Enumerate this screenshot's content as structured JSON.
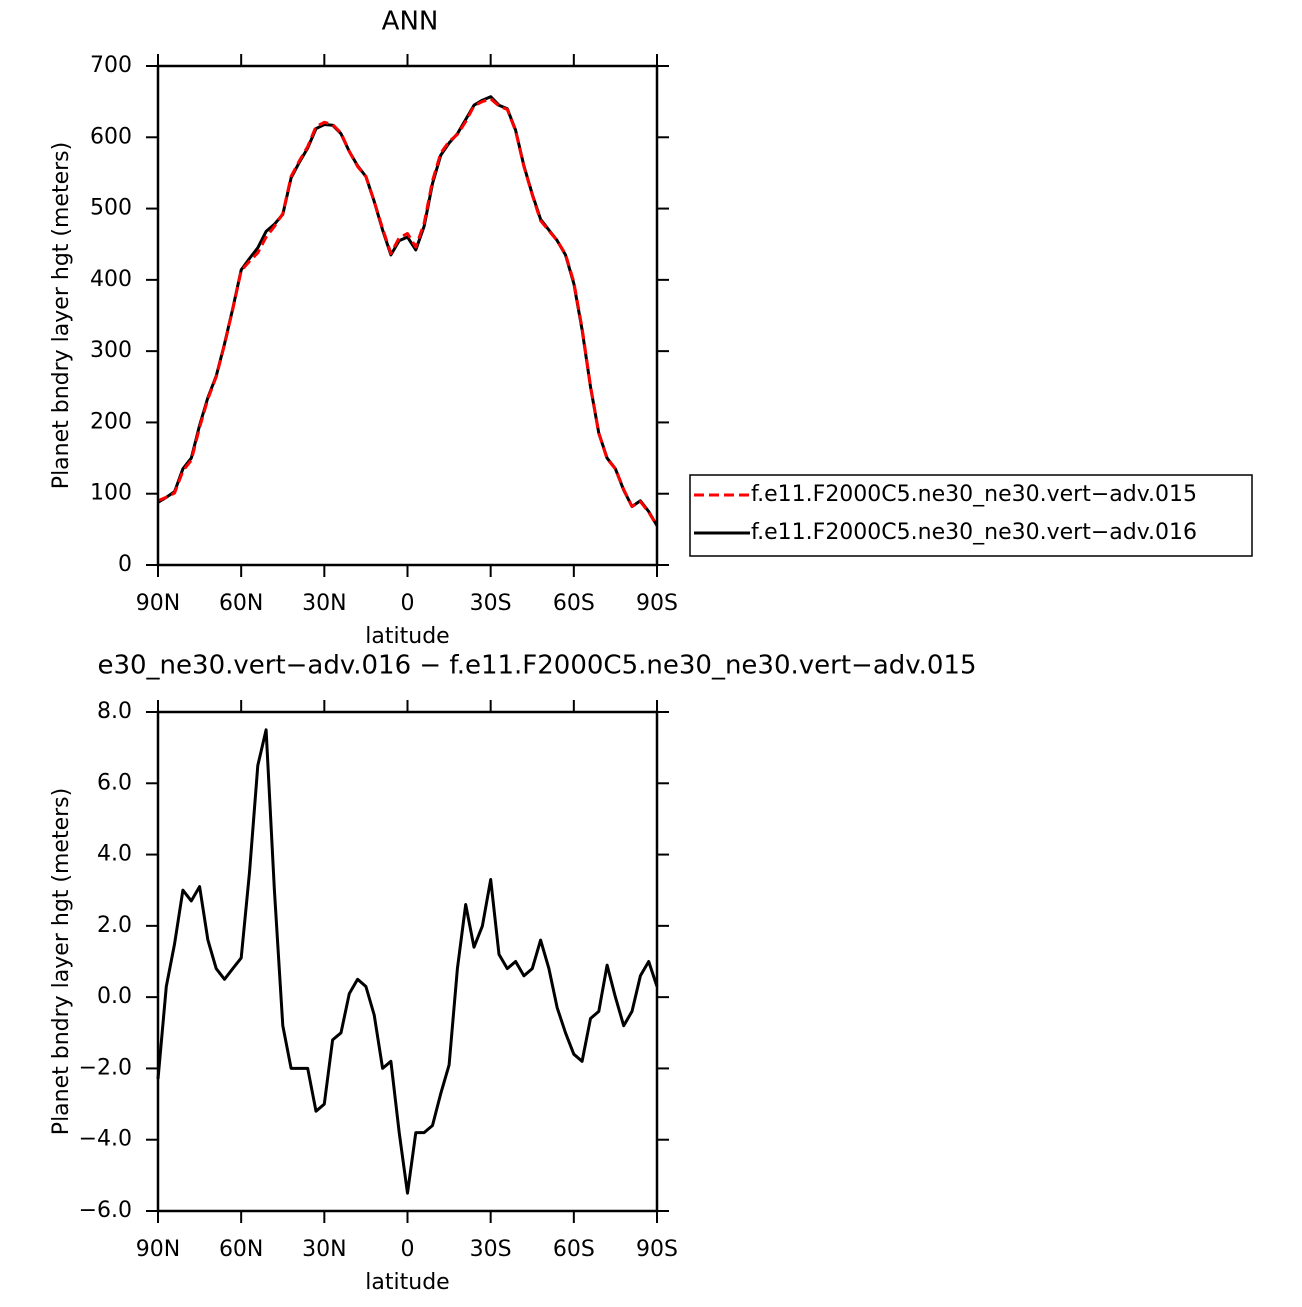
{
  "chart_data": [
    {
      "type": "line",
      "title": "ANN",
      "xlabel": "latitude",
      "ylabel": "Planet bndry layer hgt (meters)",
      "x": [
        90,
        87,
        84,
        81,
        78,
        75,
        72,
        69,
        66,
        63,
        60,
        57,
        54,
        51,
        48,
        45,
        42,
        39,
        36,
        33,
        30,
        27,
        24,
        21,
        18,
        15,
        12,
        9,
        6,
        3,
        0,
        -3,
        -6,
        -9,
        -12,
        -15,
        -18,
        -21,
        -24,
        -27,
        -30,
        -33,
        -36,
        -39,
        -42,
        -45,
        -48,
        -51,
        -54,
        -57,
        -60,
        -63,
        -66,
        -69,
        -72,
        -75,
        -78,
        -81,
        -84,
        -87,
        -90
      ],
      "xlim": [
        90,
        -90
      ],
      "xticks": [
        {
          "value": 90,
          "label": "90N"
        },
        {
          "value": 60,
          "label": "60N"
        },
        {
          "value": 30,
          "label": "30N"
        },
        0,
        {
          "value": -30,
          "label": "30S"
        },
        {
          "value": -60,
          "label": "60S"
        },
        {
          "value": -90,
          "label": "90S"
        }
      ],
      "ylim": [
        0,
        700
      ],
      "yticks": [
        0,
        100,
        200,
        300,
        400,
        500,
        600,
        700
      ],
      "legend": "right",
      "series": [
        {
          "name": "f.e11.F2000C5.ne30_ne30.vert−adv.015",
          "color": "#ff0000",
          "dashed": true,
          "values": [
            90,
            95,
            101,
            132,
            147,
            193,
            233,
            264,
            309,
            359,
            413,
            426,
            438,
            460,
            475,
            493,
            545,
            567,
            587,
            615,
            621,
            618,
            606,
            580,
            559,
            545,
            510,
            472,
            437,
            459,
            465,
            446,
            479,
            539,
            578,
            594,
            604,
            622,
            644,
            650,
            654,
            644,
            639,
            609,
            559,
            519,
            483,
            469,
            455,
            436,
            397,
            332,
            251,
            185,
            149,
            135,
            106,
            82,
            89,
            74,
            55
          ]
        },
        {
          "name": "f.e11.F2000C5.ne30_ne30.vert−adv.016",
          "color": "#000000",
          "dashed": false,
          "values": [
            88,
            95,
            103,
            135,
            150,
            196,
            235,
            265,
            310,
            360,
            414,
            430,
            445,
            468,
            478,
            492,
            543,
            565,
            585,
            612,
            618,
            617,
            605,
            580,
            560,
            545,
            510,
            470,
            435,
            455,
            460,
            442,
            475,
            535,
            575,
            592,
            605,
            625,
            645,
            652,
            657,
            645,
            640,
            610,
            560,
            520,
            485,
            470,
            455,
            435,
            395,
            330,
            250,
            185,
            150,
            135,
            105,
            82,
            90,
            75,
            55
          ]
        }
      ]
    },
    {
      "type": "line",
      "title": "e30_ne30.vert−adv.016 − f.e11.F2000C5.ne30_ne30.vert−adv.015",
      "xlabel": "latitude",
      "ylabel": "Planet bndry layer hgt (meters)",
      "x": [
        90,
        87,
        84,
        81,
        78,
        75,
        72,
        69,
        66,
        63,
        60,
        57,
        54,
        51,
        48,
        45,
        42,
        39,
        36,
        33,
        30,
        27,
        24,
        21,
        18,
        15,
        12,
        9,
        6,
        3,
        0,
        -3,
        -6,
        -9,
        -12,
        -15,
        -18,
        -21,
        -24,
        -27,
        -30,
        -33,
        -36,
        -39,
        -42,
        -45,
        -48,
        -51,
        -54,
        -57,
        -60,
        -63,
        -66,
        -69,
        -72,
        -75,
        -78,
        -81,
        -84,
        -87,
        -90
      ],
      "xlim": [
        90,
        -90
      ],
      "xticks": [
        {
          "value": 90,
          "label": "90N"
        },
        {
          "value": 60,
          "label": "60N"
        },
        {
          "value": 30,
          "label": "30N"
        },
        0,
        {
          "value": -30,
          "label": "30S"
        },
        {
          "value": -60,
          "label": "60S"
        },
        {
          "value": -90,
          "label": "90S"
        }
      ],
      "ylim": [
        -6,
        8
      ],
      "yticks": [
        {
          "value": -6,
          "label": "−6.0"
        },
        {
          "value": -4,
          "label": "−4.0"
        },
        {
          "value": -2,
          "label": "−2.0"
        },
        {
          "value": 0,
          "label": "0.0"
        },
        {
          "value": 2,
          "label": "2.0"
        },
        {
          "value": 4,
          "label": "4.0"
        },
        {
          "value": 6,
          "label": "6.0"
        },
        {
          "value": 8,
          "label": "8.0"
        }
      ],
      "color": "#000000",
      "values": [
        -2.3,
        0.3,
        1.5,
        3.0,
        2.7,
        3.1,
        1.6,
        0.8,
        0.5,
        0.8,
        1.1,
        3.5,
        6.5,
        7.5,
        3.0,
        -0.8,
        -2.0,
        -2.0,
        -2.0,
        -3.2,
        -3.0,
        -1.2,
        -1.0,
        0.1,
        0.5,
        0.3,
        -0.5,
        -2.0,
        -1.8,
        -3.8,
        -5.5,
        -3.8,
        -3.8,
        -3.6,
        -2.7,
        -1.9,
        0.8,
        2.6,
        1.4,
        2.0,
        3.3,
        1.2,
        0.8,
        1.0,
        0.6,
        0.8,
        1.6,
        0.8,
        -0.3,
        -1.0,
        -1.6,
        -1.8,
        -0.6,
        -0.4,
        0.9,
        0.0,
        -0.8,
        -0.4,
        0.6,
        1.0,
        0.3
      ]
    }
  ]
}
